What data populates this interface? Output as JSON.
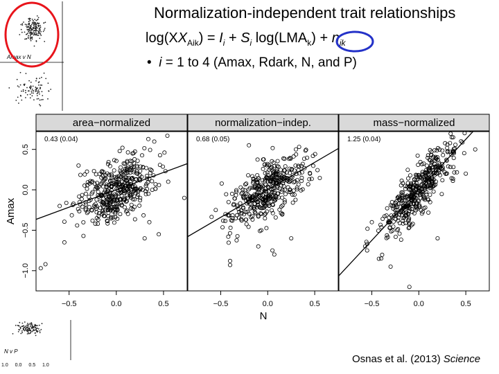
{
  "slide": {
    "title": "Normalization-independent trait relationships",
    "formula": {
      "lhs_pre": "log(X",
      "lhs_sub": "Aik",
      "lhs_post": ") = ",
      "I": "I",
      "I_sub": "i",
      "plus1": " + ",
      "S": "S",
      "S_sub": "i",
      "log_lma_pre": " log(LMA",
      "k_sub": "k",
      "log_lma_post": ") + ",
      "n": "n",
      "n_sub": "ik"
    },
    "bullet": {
      "marker": "•",
      "i": "i",
      "rest": " = 1 to 4 (Amax, Rdark, N, and P)"
    },
    "citation": {
      "authors": "Osnas et al. (2013) ",
      "journal": "Science"
    },
    "thumb_top_label": "Amax v N",
    "thumb_bottom_label": "N v P",
    "thumb_bottom_ticks": "1.0 0.0 0.5 1.0",
    "highlight_color": "#e8141b",
    "highlight2_color": "#2432c8"
  },
  "chart_data": {
    "type": "scatter",
    "ylabel": "Amax",
    "xlabel": "N",
    "xlim": [
      -0.85,
      0.75
    ],
    "ylim": [
      -1.25,
      0.72
    ],
    "x_ticks": [
      "−0.5",
      "0.0",
      "0.5"
    ],
    "x_tick_values": [
      -0.5,
      0.0,
      0.5
    ],
    "y_ticks": [
      "0.5",
      "0.0",
      "−0.5",
      "−1.0"
    ],
    "y_tick_values": [
      0.5,
      0.0,
      -0.5,
      -1.0
    ],
    "panels": [
      {
        "title": "area−normalized",
        "annotation": "0.43 (0.04)",
        "slope": 0.43,
        "intercept": 0.0,
        "outliers": [
          [
            -0.8,
            -0.97
          ],
          [
            -0.75,
            -0.92
          ],
          [
            -0.55,
            -0.65
          ],
          [
            -0.6,
            -0.2
          ],
          [
            0.35,
            -0.4
          ],
          [
            0.3,
            -0.6
          ],
          [
            0.72,
            -0.1
          ],
          [
            -0.4,
            0.3
          ],
          [
            0.55,
            0.1
          ],
          [
            0.45,
            -0.55
          ]
        ]
      },
      {
        "title": "normalization−indep.",
        "annotation": "0.68 (0.05)",
        "slope": 0.68,
        "intercept": 0.0,
        "outliers": [
          [
            -0.4,
            -0.88
          ],
          [
            -0.4,
            -0.93
          ],
          [
            -0.1,
            -0.7
          ],
          [
            0.05,
            -0.75
          ],
          [
            0.07,
            -0.8
          ],
          [
            0.25,
            -0.6
          ],
          [
            0.3,
            0.5
          ],
          [
            -0.2,
            0.55
          ],
          [
            0.45,
            0.2
          ],
          [
            -0.45,
            -0.3
          ]
        ]
      },
      {
        "title": "mass−normalized",
        "annotation": "1.25 (0.04)",
        "slope": 1.25,
        "intercept": 0.0,
        "outliers": [
          [
            -0.1,
            -1.2
          ],
          [
            0.35,
            0.65
          ],
          [
            0.45,
            0.6
          ],
          [
            -0.55,
            -0.75
          ],
          [
            -0.4,
            -0.85
          ],
          [
            0.2,
            -0.6
          ],
          [
            0.6,
            0.5
          ],
          [
            -0.3,
            -0.95
          ],
          [
            0.5,
            0.2
          ],
          [
            -0.5,
            -0.4
          ]
        ]
      }
    ]
  }
}
